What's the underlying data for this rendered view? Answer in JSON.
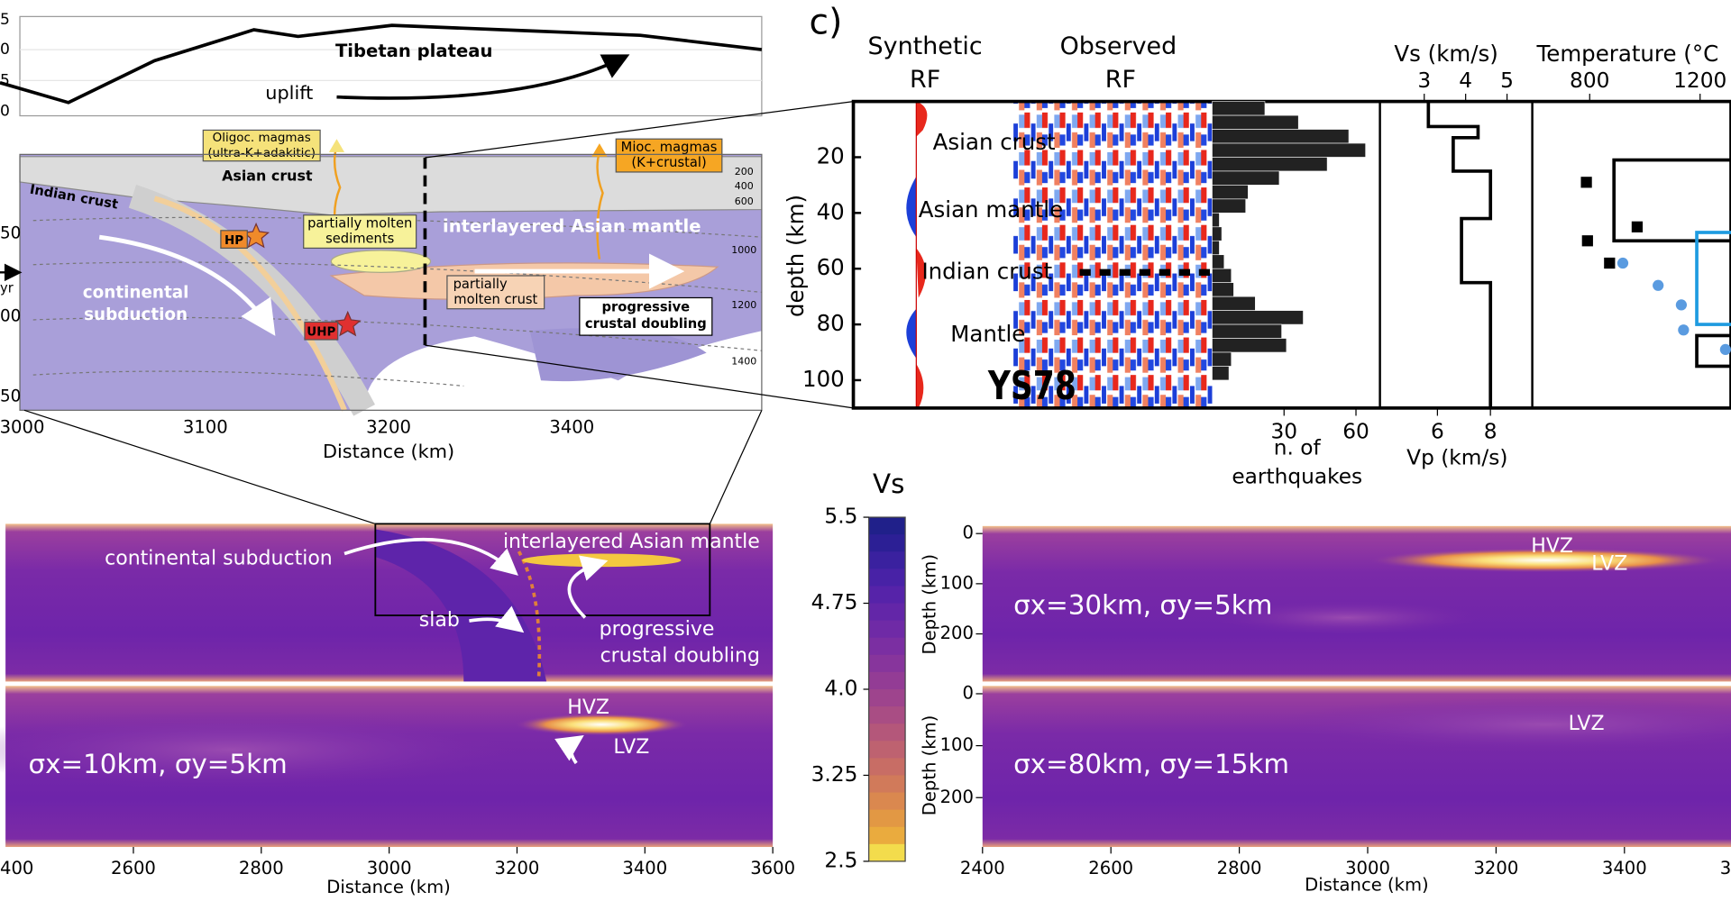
{
  "panel_label": "c)",
  "elevation": {
    "title": "Tibetan plateau",
    "uplift": "uplift",
    "cropped_yticks": [
      "5",
      "0",
      "5",
      "0"
    ]
  },
  "section": {
    "labels": {
      "oligoc": [
        "Oligoc. magmas",
        "(ultra-K+adakitic)"
      ],
      "asian_crust": "Asian crust",
      "indian_crust": "Indian crust",
      "hp": "HP",
      "uhp": "UHP",
      "sediments": [
        "partially molten",
        "sediments"
      ],
      "mantle": "interlayered Asian mantle",
      "subduction": [
        "continental",
        "subduction"
      ],
      "molten_crust": [
        "partially",
        "molten crust"
      ],
      "doubling": [
        "progressive",
        "crustal doubling"
      ],
      "mioc": [
        "Mioc. magmas",
        "(K+crustal)"
      ]
    },
    "isotherms": [
      200,
      400,
      600,
      1000,
      1200,
      1400
    ],
    "xtick_labels": [
      "3000",
      "3100",
      "3200",
      "3400"
    ],
    "xlabel": "Distance (km)",
    "cropped_yticks": [
      "50",
      "00",
      "50"
    ],
    "cropped_arrow_label": "yr"
  },
  "rf": {
    "synthetic": [
      "Synthetic",
      "RF"
    ],
    "observed": [
      "Observed",
      "RF"
    ],
    "station": "YS78",
    "layers": [
      "Asian crust",
      "Asian mantle",
      "Indian crust",
      "Mantle"
    ],
    "ylabel": "depth (km)",
    "ylim": [
      0,
      110
    ],
    "yticks": [
      20,
      40,
      60,
      80,
      100
    ]
  },
  "earthquakes": {
    "xlabel": [
      "n. of",
      "earthquakes"
    ],
    "xlim": [
      0,
      70
    ],
    "xticks": [
      30,
      60
    ],
    "color": "#222222",
    "bins": [
      0,
      5,
      10,
      15,
      20,
      25,
      30,
      35,
      40,
      45,
      50,
      55,
      60,
      65,
      70,
      75,
      80,
      85,
      90,
      95,
      100
    ],
    "counts": [
      22,
      36,
      57,
      64,
      48,
      28,
      15,
      14,
      3,
      4,
      3,
      5,
      8,
      9,
      18,
      38,
      29,
      31,
      8,
      7
    ]
  },
  "velocity": {
    "vs_label": "Vs (km/s)",
    "vs_lim": [
      1.93,
      5.61
    ],
    "vs_ticks": [
      3,
      4,
      5
    ],
    "vp_label": "Vp (km/s)",
    "vp_lim": [
      3.83,
      9.58
    ],
    "vp_ticks": [
      6,
      8
    ],
    "depth": [
      0,
      9,
      9,
      13,
      13,
      25,
      25,
      42,
      42,
      65,
      65,
      110
    ],
    "vs": [
      3.1,
      3.1,
      4.3,
      4.3,
      3.7,
      3.7,
      4.6,
      4.6,
      3.9,
      3.9,
      4.6,
      4.6
    ]
  },
  "temperature": {
    "label": "Temperature (°C",
    "xlim": [
      592,
      1312
    ],
    "xticks": [
      800,
      1200
    ],
    "boxes": [
      {
        "t": [
          888,
          1388
        ],
        "depth": [
          21,
          50
        ],
        "color": "#000000"
      },
      {
        "t": [
          1188,
          1320
        ],
        "depth": [
          84,
          95
        ],
        "color": "#000000"
      },
      {
        "t": [
          1188,
          1428
        ],
        "depth": [
          47,
          80
        ],
        "color": "#1e9be0"
      }
    ],
    "squares": {
      "t": [
        788,
        792,
        972,
        872
      ],
      "depth": [
        29,
        50,
        45,
        58
      ],
      "color": "#000000"
    },
    "dots": {
      "t": [
        920,
        1048,
        1132,
        1140,
        1292
      ],
      "depth": [
        58,
        66,
        73,
        82,
        89
      ],
      "color": "#5a9be0"
    }
  },
  "colorbar": {
    "title": "Vs",
    "ylim": [
      2.5,
      5.5
    ],
    "yticks": [
      5.5,
      4.75,
      {
        "value": 4,
        "label": "4.0"
      },
      3.25,
      2.5
    ],
    "colors": [
      "#20208a",
      "#2c1f95",
      "#3a219f",
      "#4822a6",
      "#5623a9",
      "#6326a8",
      "#6f2aa6",
      "#7b2fa2",
      "#87359c",
      "#933c95",
      "#9e448d",
      "#a94d84",
      "#b4577a",
      "#be6270",
      "#c86d65",
      "#d17a5a",
      "#da884f",
      "#e29844",
      "#eaab3e",
      "#f3dc4c"
    ]
  },
  "models_left": {
    "xlim": [
      2400,
      3600
    ],
    "xticks": [
      2600,
      2800,
      3000,
      3200,
      3400,
      3600
    ],
    "cropped_xtick": "400",
    "xlabel": "Distance (km)",
    "top": {
      "subduction": "continental subduction",
      "mantle": "interlayered Asian mantle",
      "slab": "slab",
      "doubling": [
        "progressive",
        "crustal doubling"
      ]
    },
    "bottom": {
      "hvz": "HVZ",
      "lvz": "LVZ",
      "sigma": "σx=10km, σy=5km"
    }
  },
  "models_right": {
    "xlim": [
      2400,
      3566
    ],
    "xticks": [
      2400,
      2600,
      2800,
      3000,
      3200,
      3400
    ],
    "cropped_xtick": "3",
    "ylim": [
      -15,
      295
    ],
    "yticks": [
      0,
      100,
      200
    ],
    "ylabel": "Depth (km)",
    "xlabel": "Distance (km)",
    "top": {
      "hvz": "HVZ",
      "lvz": "LVZ",
      "sigma": "σx=30km, σy=5km"
    },
    "bottom": {
      "lvz": "LVZ",
      "sigma": "σx=80km, σy=15km"
    }
  }
}
